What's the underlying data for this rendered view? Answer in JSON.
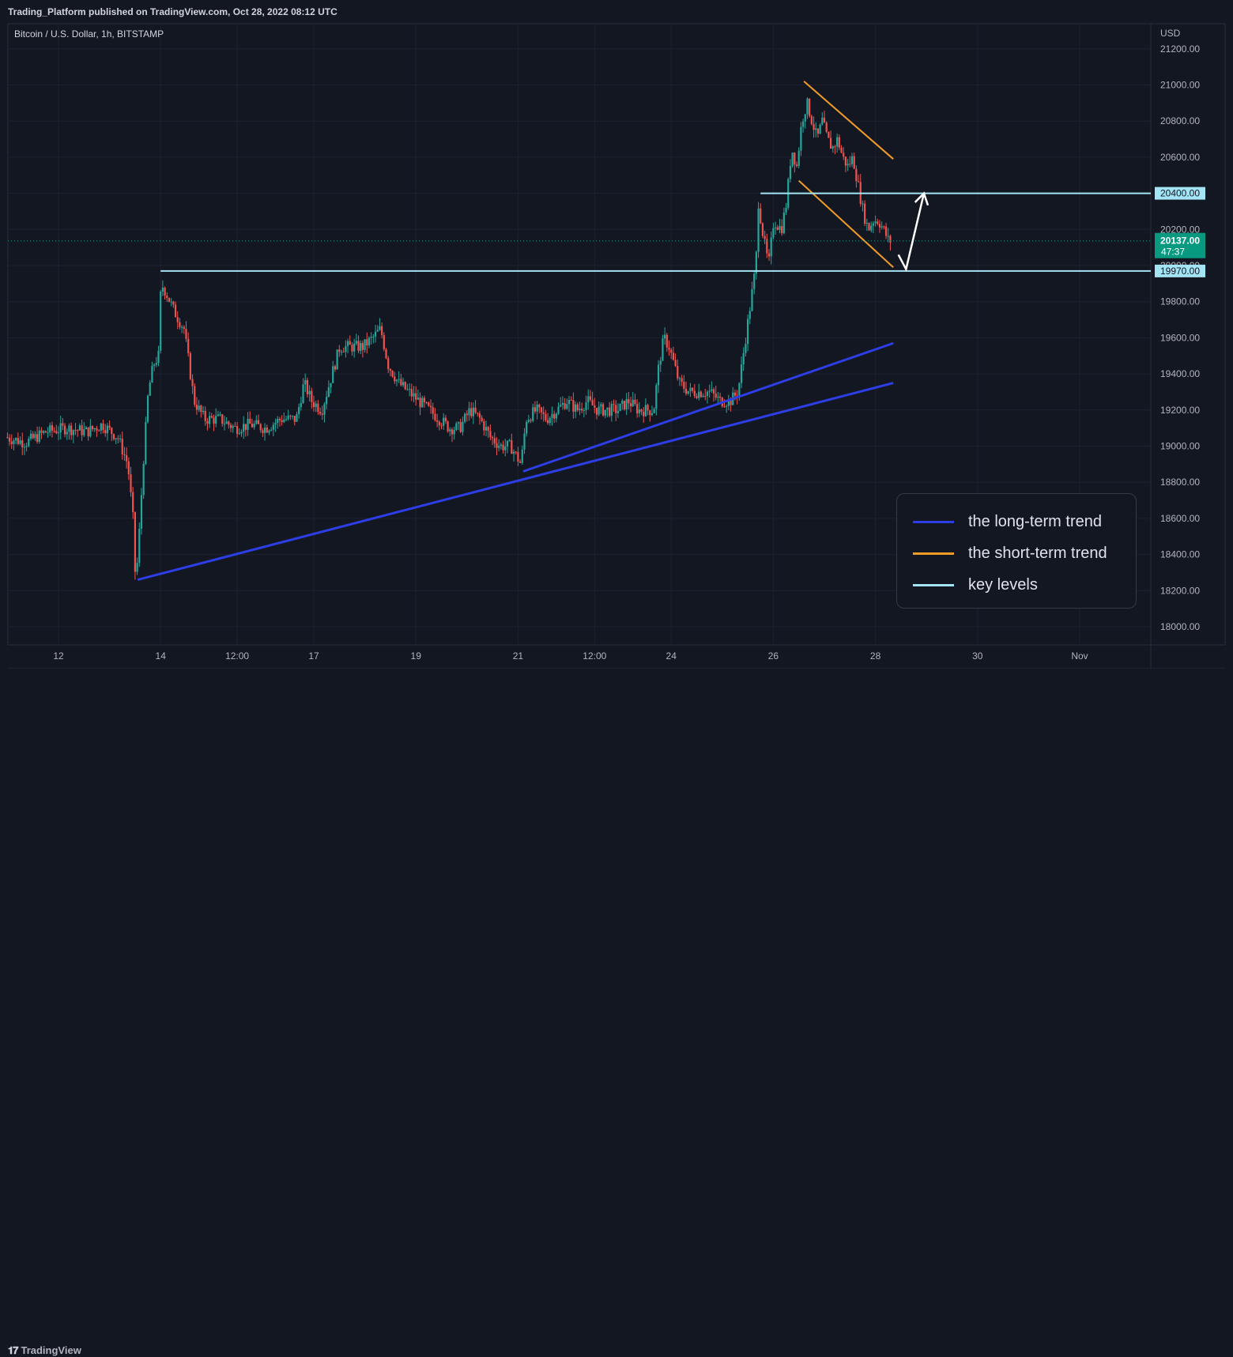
{
  "header": {
    "published": "Trading_Platform published on TradingView.com, Oct 28, 2022 08:12 UTC"
  },
  "footer": {
    "brand": "TradingView",
    "brand_icon": "tradingview-logo-icon"
  },
  "colors": {
    "background": "#131722",
    "grid": "#1e2230",
    "up_candle": "#26a69a",
    "down_candle": "#ef5350",
    "long_term": "#2d3ee6",
    "short_term": "#f29b27",
    "key_level": "#a3e4f5",
    "axis_text": "#b2b5be",
    "current_price_bg": "#089981"
  },
  "chart_data": {
    "type": "candlestick",
    "symbol_title": "Bitcoin / U.S. Dollar, 1h, BITSTAMP",
    "currency": "USD",
    "ylim": [
      17900,
      21350
    ],
    "y_ticks": [
      18000,
      18200,
      18400,
      18600,
      18800,
      19000,
      19200,
      19400,
      19600,
      19800,
      20000,
      20200,
      20400,
      20600,
      20800,
      21000,
      21200
    ],
    "y_tick_labels": [
      "18000.00",
      "18200.00",
      "18400.00",
      "18600.00",
      "18800.00",
      "19000.00",
      "19200.00",
      "19400.00",
      "19600.00",
      "19800.00",
      "20000.00",
      "20200.00",
      "20400.00",
      "20600.00",
      "20800.00",
      "21000.00",
      "21200.00"
    ],
    "x_ticks": [
      {
        "t": 11.0,
        "label": "12"
      },
      {
        "t": 13.0,
        "label": "14"
      },
      {
        "t": 14.5,
        "label": "12:00"
      },
      {
        "t": 16.0,
        "label": "17"
      },
      {
        "t": 18.0,
        "label": "19"
      },
      {
        "t": 20.0,
        "label": "21"
      },
      {
        "t": 21.5,
        "label": "12:00"
      },
      {
        "t": 23.0,
        "label": "24"
      },
      {
        "t": 25.0,
        "label": "26"
      },
      {
        "t": 27.0,
        "label": "28"
      },
      {
        "t": 29.0,
        "label": "30"
      },
      {
        "t": 31.0,
        "label": "Nov"
      }
    ],
    "x_range": [
      10.0,
      32.0
    ],
    "price_path": [
      [
        10.0,
        19050
      ],
      [
        10.4,
        19020
      ],
      [
        10.8,
        19080
      ],
      [
        11.2,
        19100
      ],
      [
        11.6,
        19080
      ],
      [
        11.9,
        19120
      ],
      [
        12.2,
        19050
      ],
      [
        12.4,
        18900
      ],
      [
        12.5,
        18600
      ],
      [
        12.55,
        18250
      ],
      [
        12.6,
        18400
      ],
      [
        12.7,
        18900
      ],
      [
        12.8,
        19300
      ],
      [
        12.9,
        19450
      ],
      [
        13.0,
        19500
      ],
      [
        13.05,
        19900
      ],
      [
        13.15,
        19850
      ],
      [
        13.3,
        19750
      ],
      [
        13.5,
        19650
      ],
      [
        13.7,
        19250
      ],
      [
        13.9,
        19150
      ],
      [
        14.2,
        19150
      ],
      [
        14.5,
        19100
      ],
      [
        14.8,
        19120
      ],
      [
        15.1,
        19100
      ],
      [
        15.4,
        19150
      ],
      [
        15.7,
        19150
      ],
      [
        15.85,
        19350
      ],
      [
        16.0,
        19250
      ],
      [
        16.2,
        19200
      ],
      [
        16.4,
        19400
      ],
      [
        16.55,
        19550
      ],
      [
        16.8,
        19550
      ],
      [
        17.0,
        19550
      ],
      [
        17.2,
        19600
      ],
      [
        17.35,
        19650
      ],
      [
        17.5,
        19450
      ],
      [
        17.7,
        19350
      ],
      [
        17.9,
        19300
      ],
      [
        18.1,
        19250
      ],
      [
        18.3,
        19200
      ],
      [
        18.5,
        19150
      ],
      [
        18.7,
        19100
      ],
      [
        18.9,
        19100
      ],
      [
        19.1,
        19200
      ],
      [
        19.3,
        19150
      ],
      [
        19.5,
        19050
      ],
      [
        19.7,
        19000
      ],
      [
        19.9,
        19000
      ],
      [
        20.1,
        18900
      ],
      [
        20.2,
        19150
      ],
      [
        20.4,
        19200
      ],
      [
        20.6,
        19150
      ],
      [
        20.8,
        19200
      ],
      [
        21.0,
        19250
      ],
      [
        21.2,
        19200
      ],
      [
        21.4,
        19250
      ],
      [
        21.6,
        19200
      ],
      [
        21.8,
        19200
      ],
      [
        22.0,
        19200
      ],
      [
        22.2,
        19250
      ],
      [
        22.4,
        19200
      ],
      [
        22.7,
        19200
      ],
      [
        22.8,
        19450
      ],
      [
        22.9,
        19600
      ],
      [
        23.0,
        19550
      ],
      [
        23.1,
        19450
      ],
      [
        23.2,
        19350
      ],
      [
        23.4,
        19300
      ],
      [
        23.6,
        19300
      ],
      [
        23.8,
        19300
      ],
      [
        24.0,
        19250
      ],
      [
        24.2,
        19250
      ],
      [
        24.35,
        19300
      ],
      [
        24.5,
        19600
      ],
      [
        24.6,
        19800
      ],
      [
        24.7,
        20000
      ],
      [
        24.75,
        20350
      ],
      [
        24.85,
        20150
      ],
      [
        24.95,
        20000
      ],
      [
        25.05,
        20250
      ],
      [
        25.2,
        20200
      ],
      [
        25.3,
        20350
      ],
      [
        25.4,
        20650
      ],
      [
        25.5,
        20550
      ],
      [
        25.6,
        20800
      ],
      [
        25.7,
        20900
      ],
      [
        25.8,
        20800
      ],
      [
        25.9,
        20700
      ],
      [
        26.0,
        20800
      ],
      [
        26.1,
        20700
      ],
      [
        26.2,
        20650
      ],
      [
        26.3,
        20700
      ],
      [
        26.4,
        20600
      ],
      [
        26.5,
        20550
      ],
      [
        26.6,
        20600
      ],
      [
        26.7,
        20450
      ],
      [
        26.8,
        20300
      ],
      [
        26.9,
        20200
      ],
      [
        27.0,
        20250
      ],
      [
        27.1,
        20250
      ],
      [
        27.2,
        20200
      ],
      [
        27.3,
        20137
      ]
    ],
    "candles_generated_from_price_path": true,
    "current_price": {
      "value": "20137.00",
      "countdown": "47:37"
    },
    "key_levels": [
      {
        "price": 20400,
        "label": "20400.00",
        "t_start": 24.75
      },
      {
        "price": 19970,
        "label": "19970.00",
        "t_start": 13.0
      }
    ],
    "long_term_trend_lines": [
      {
        "from": [
          12.55,
          18260
        ],
        "to": [
          27.35,
          19350
        ]
      },
      {
        "from": [
          20.1,
          18860
        ],
        "to": [
          27.35,
          19570
        ]
      }
    ],
    "short_term_channel": [
      {
        "from": [
          25.6,
          21020
        ],
        "to": [
          27.35,
          20590
        ]
      },
      {
        "from": [
          25.5,
          20470
        ],
        "to": [
          27.35,
          19990
        ]
      }
    ],
    "projection_arrow": [
      [
        27.45,
        20060
      ],
      [
        27.6,
        19980
      ],
      [
        27.95,
        20400
      ]
    ],
    "legend": [
      {
        "label": "the long-term trend",
        "color": "#2d3ee6"
      },
      {
        "label": "the short-term trend",
        "color": "#f29b27"
      },
      {
        "label": "key levels",
        "color": "#a3e4f5"
      }
    ],
    "legend_position": "bottom-right"
  }
}
